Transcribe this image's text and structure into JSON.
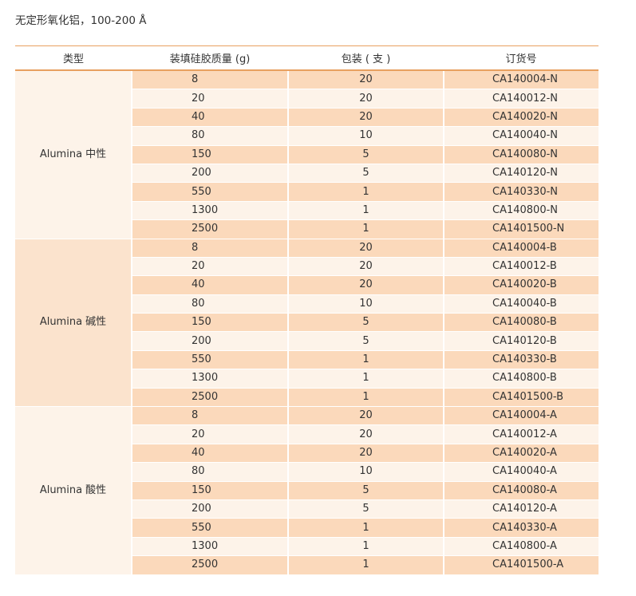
{
  "title": "无定形氧化铝，100-200 Å",
  "table": {
    "headers": [
      "类型",
      "装填硅胶质量 (g)",
      "包装 ( 支 )",
      "订货号"
    ],
    "groups": [
      {
        "type": "Alumina 中性",
        "rows": [
          {
            "qty": "8",
            "pack": "20",
            "order": "CA140004-N"
          },
          {
            "qty": "20",
            "pack": "20",
            "order": "CA140012-N"
          },
          {
            "qty": "40",
            "pack": "20",
            "order": "CA140020-N"
          },
          {
            "qty": "80",
            "pack": "10",
            "order": "CA140040-N"
          },
          {
            "qty": "150",
            "pack": "5",
            "order": "CA140080-N"
          },
          {
            "qty": "200",
            "pack": "5",
            "order": "CA140120-N"
          },
          {
            "qty": "550",
            "pack": "1",
            "order": "CA140330-N"
          },
          {
            "qty": "1300",
            "pack": "1",
            "order": "CA140800-N"
          },
          {
            "qty": "2500",
            "pack": "1",
            "order": "CA1401500-N"
          }
        ]
      },
      {
        "type": "Alumina 碱性",
        "rows": [
          {
            "qty": "8",
            "pack": "20",
            "order": "CA140004-B"
          },
          {
            "qty": "20",
            "pack": "20",
            "order": "CA140012-B"
          },
          {
            "qty": "40",
            "pack": "20",
            "order": "CA140020-B"
          },
          {
            "qty": "80",
            "pack": "10",
            "order": "CA140040-B"
          },
          {
            "qty": "150",
            "pack": "5",
            "order": "CA140080-B"
          },
          {
            "qty": "200",
            "pack": "5",
            "order": "CA140120-B"
          },
          {
            "qty": "550",
            "pack": "1",
            "order": "CA140330-B"
          },
          {
            "qty": "1300",
            "pack": "1",
            "order": "CA140800-B"
          },
          {
            "qty": "2500",
            "pack": "1",
            "order": "CA1401500-B"
          }
        ]
      },
      {
        "type": "Alumina 酸性",
        "rows": [
          {
            "qty": "8",
            "pack": "20",
            "order": "CA140004-A"
          },
          {
            "qty": "20",
            "pack": "20",
            "order": "CA140012-A"
          },
          {
            "qty": "40",
            "pack": "20",
            "order": "CA140020-A"
          },
          {
            "qty": "80",
            "pack": "10",
            "order": "CA140040-A"
          },
          {
            "qty": "150",
            "pack": "5",
            "order": "CA140080-A"
          },
          {
            "qty": "200",
            "pack": "5",
            "order": "CA140120-A"
          },
          {
            "qty": "550",
            "pack": "1",
            "order": "CA140330-A"
          },
          {
            "qty": "1300",
            "pack": "1",
            "order": "CA140800-A"
          },
          {
            "qty": "2500",
            "pack": "1",
            "order": "CA1401500-A"
          }
        ]
      }
    ]
  },
  "colors": {
    "header_rule": "#e8a060",
    "row_band_dark": "#fbd9bb",
    "row_band_light": "#fdf3e9",
    "type_cell_tint": "#fbe3cd"
  }
}
